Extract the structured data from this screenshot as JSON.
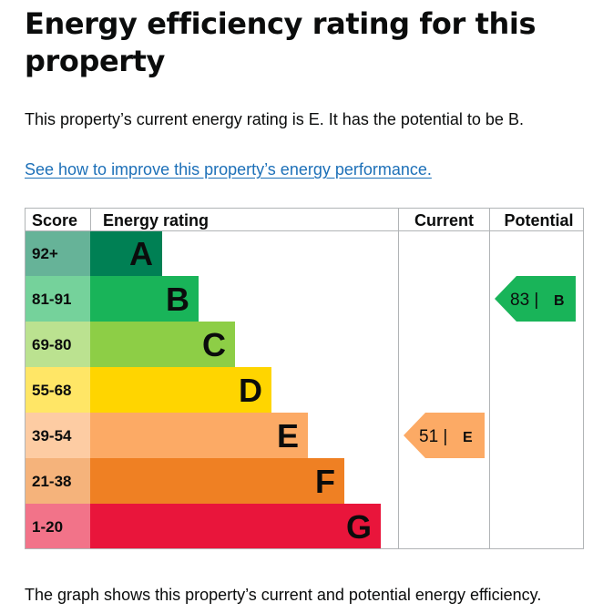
{
  "heading": "Energy efficiency rating for this property",
  "intro": "This property’s current energy rating is E. It has the potential to be B.",
  "improve_link": "See how to improve this property’s energy performance.",
  "footer": "The graph shows this property’s current and potential energy efficiency.",
  "chart_data": {
    "type": "bar",
    "headers": {
      "score": "Score",
      "rating": "Energy rating",
      "current": "Current",
      "potential": "Potential"
    },
    "bands": [
      {
        "letter": "A",
        "range": "92+",
        "color": "#008054",
        "score_bg": "#66b398"
      },
      {
        "letter": "B",
        "range": "81-91",
        "color": "#19b459",
        "score_bg": "#75d29b"
      },
      {
        "letter": "C",
        "range": "69-80",
        "color": "#8dce46",
        "score_bg": "#bbe290"
      },
      {
        "letter": "D",
        "range": "55-68",
        "color": "#ffd500",
        "score_bg": "#ffe666"
      },
      {
        "letter": "E",
        "range": "39-54",
        "color": "#fcaa65",
        "score_bg": "#fdcca3"
      },
      {
        "letter": "F",
        "range": "21-38",
        "color": "#ef8023",
        "score_bg": "#f5b37b"
      },
      {
        "letter": "G",
        "range": "1-20",
        "color": "#e9153b",
        "score_bg": "#f27389"
      }
    ],
    "current": {
      "value": 51,
      "letter": "E",
      "label": "51 |",
      "color": "#fcaa65"
    },
    "potential": {
      "value": 83,
      "letter": "B",
      "label": "83 |",
      "color": "#19b459"
    }
  }
}
